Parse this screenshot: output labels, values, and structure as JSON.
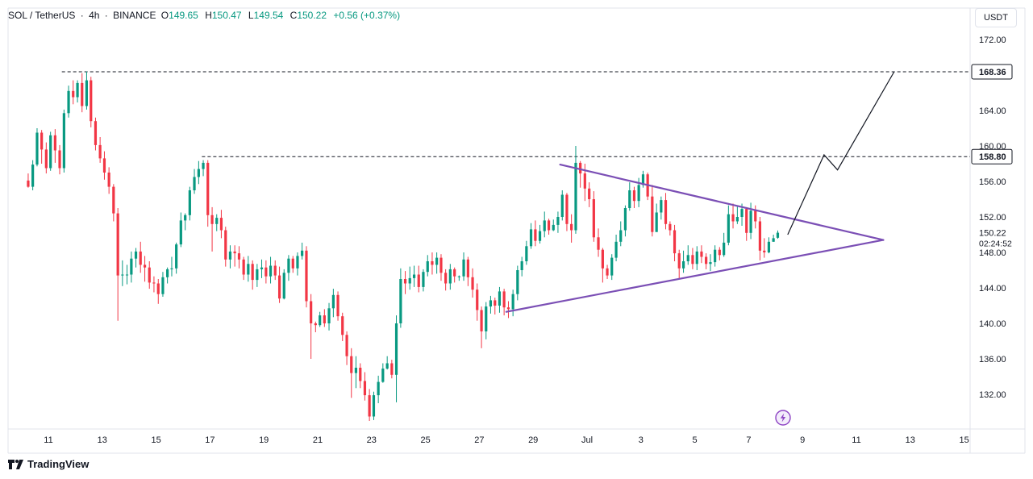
{
  "header": {
    "symbol": "SOL / TetherUS",
    "interval": "4h",
    "exchange": "BINANCE",
    "open_label": "O",
    "open": "149.65",
    "high_label": "H",
    "high": "150.47",
    "low_label": "L",
    "low": "149.54",
    "close_label": "C",
    "close": "150.22",
    "change": "+0.56 (+0.37%)"
  },
  "currency": "USDT",
  "brand": "TradingView",
  "colors": {
    "up": "#089981",
    "down": "#f23645",
    "triangle": "#7b4fb5",
    "projection": "#131722",
    "level_box": "#ffffff",
    "price_box": "#ffffff"
  },
  "icons": [
    "tradingview-logo-icon",
    "lightning-icon"
  ],
  "chart_data": {
    "type": "candlestick",
    "ylim": [
      128,
      175
    ],
    "y_ticks": [
      "172.00",
      "164.00",
      "160.00",
      "156.00",
      "152.00",
      "148.00",
      "144.00",
      "140.00",
      "136.00",
      "132.00"
    ],
    "x_ticks": [
      "11",
      "13",
      "15",
      "17",
      "19",
      "21",
      "23",
      "25",
      "27",
      "29",
      "Jul",
      "3",
      "5",
      "7",
      "9",
      "11",
      "13",
      "15"
    ],
    "x_domain": [
      "Jun 10",
      "Jul 16"
    ],
    "levels": [
      {
        "label": "168.36",
        "value": 168.36,
        "from": 11.5
      },
      {
        "label": "158.80",
        "value": 158.8,
        "from": 16.7
      }
    ],
    "last_price": {
      "label": "150.22",
      "value": 150.22,
      "countdown": "02:24:52"
    },
    "triangle": {
      "upper": [
        [
          30.0,
          157.9
        ],
        [
          42.0,
          149.4
        ]
      ],
      "lower": [
        [
          28.0,
          141.3
        ],
        [
          42.0,
          149.4
        ]
      ]
    },
    "projection": [
      [
        38.45,
        150.0
      ],
      [
        39.8,
        159.0
      ],
      [
        40.3,
        157.3
      ],
      [
        42.4,
        168.36
      ]
    ],
    "candles": [
      [
        10.25,
        156.1,
        155.4,
        156.9,
        155.3
      ],
      [
        10.42,
        155.4,
        157.9,
        158.4,
        155.0
      ],
      [
        10.58,
        157.9,
        161.5,
        162.0,
        157.7
      ],
      [
        10.75,
        161.5,
        159.6,
        161.8,
        158.0
      ],
      [
        10.92,
        159.6,
        157.5,
        160.4,
        156.9
      ],
      [
        11.08,
        157.5,
        161.2,
        161.6,
        157.2
      ],
      [
        11.25,
        161.2,
        159.5,
        161.9,
        158.1
      ],
      [
        11.42,
        159.5,
        157.5,
        160.1,
        156.8
      ],
      [
        11.58,
        157.5,
        163.7,
        164.1,
        157.0
      ],
      [
        11.75,
        163.7,
        166.2,
        166.8,
        163.2
      ],
      [
        11.92,
        166.2,
        165.5,
        167.4,
        164.7
      ],
      [
        12.08,
        165.5,
        167.1,
        167.4,
        164.9
      ],
      [
        12.25,
        167.1,
        164.5,
        168.2,
        163.8
      ],
      [
        12.42,
        164.5,
        167.4,
        168.4,
        164.1
      ],
      [
        12.58,
        167.4,
        162.8,
        167.8,
        162.1
      ],
      [
        12.75,
        162.8,
        160.1,
        163.2,
        159.5
      ],
      [
        12.92,
        160.1,
        158.6,
        161.0,
        158.1
      ],
      [
        13.08,
        158.6,
        157.0,
        159.4,
        156.2
      ],
      [
        13.25,
        157.0,
        155.4,
        157.6,
        154.6
      ],
      [
        13.42,
        155.4,
        152.4,
        155.7,
        151.5
      ],
      [
        13.58,
        152.4,
        145.4,
        153.0,
        140.3
      ],
      [
        13.75,
        145.4,
        145.5,
        147.1,
        144.2
      ],
      [
        13.92,
        145.5,
        145.5,
        146.6,
        144.4
      ],
      [
        14.08,
        145.5,
        147.3,
        148.1,
        144.6
      ],
      [
        14.25,
        147.3,
        148.1,
        148.5,
        146.3
      ],
      [
        14.42,
        148.1,
        146.6,
        149.2,
        145.7
      ],
      [
        14.58,
        146.6,
        146.3,
        147.6,
        144.7
      ],
      [
        14.75,
        146.3,
        144.6,
        147.0,
        143.9
      ],
      [
        14.92,
        144.6,
        144.5,
        145.3,
        143.5
      ],
      [
        15.08,
        144.5,
        143.3,
        145.0,
        142.2
      ],
      [
        15.25,
        143.3,
        145.2,
        145.8,
        143.0
      ],
      [
        15.42,
        145.2,
        146.1,
        146.3,
        144.5
      ],
      [
        15.58,
        146.1,
        146.2,
        147.5,
        145.3
      ],
      [
        15.75,
        146.2,
        148.9,
        149.1,
        145.6
      ],
      [
        15.92,
        148.9,
        151.6,
        152.5,
        148.6
      ],
      [
        16.08,
        151.6,
        152.2,
        152.4,
        150.5
      ],
      [
        16.25,
        152.2,
        155.0,
        155.4,
        151.6
      ],
      [
        16.42,
        155.0,
        156.5,
        157.4,
        154.6
      ],
      [
        16.58,
        156.5,
        157.4,
        158.3,
        155.7
      ],
      [
        16.75,
        157.4,
        158.1,
        158.4,
        156.6
      ],
      [
        16.92,
        158.1,
        152.2,
        158.4,
        150.9
      ],
      [
        17.08,
        152.2,
        151.2,
        153.1,
        148.1
      ],
      [
        17.25,
        151.2,
        151.9,
        152.3,
        150.4
      ],
      [
        17.42,
        151.9,
        150.5,
        152.8,
        149.6
      ],
      [
        17.58,
        150.5,
        147.2,
        150.9,
        146.4
      ],
      [
        17.75,
        147.2,
        148.1,
        148.8,
        146.2
      ],
      [
        17.92,
        148.1,
        147.9,
        148.8,
        146.4
      ],
      [
        18.08,
        147.9,
        147.2,
        148.7,
        146.2
      ],
      [
        18.25,
        147.2,
        145.5,
        147.5,
        144.9
      ],
      [
        18.42,
        145.5,
        146.7,
        147.6,
        144.7
      ],
      [
        18.58,
        146.7,
        144.9,
        147.1,
        143.8
      ],
      [
        18.75,
        144.9,
        146.1,
        146.7,
        144.1
      ],
      [
        18.92,
        146.1,
        146.3,
        147.2,
        145.1
      ],
      [
        19.08,
        146.3,
        145.3,
        147.1,
        144.5
      ],
      [
        19.25,
        145.3,
        146.5,
        147.5,
        144.5
      ],
      [
        19.42,
        146.5,
        145.4,
        147.1,
        144.9
      ],
      [
        19.58,
        145.4,
        142.8,
        146.4,
        142.3
      ],
      [
        19.75,
        142.8,
        145.7,
        146.1,
        142.7
      ],
      [
        19.92,
        145.7,
        147.3,
        147.7,
        144.8
      ],
      [
        20.08,
        147.3,
        146.2,
        147.6,
        145.7
      ],
      [
        20.25,
        146.2,
        147.6,
        148.0,
        145.4
      ],
      [
        20.42,
        147.6,
        148.2,
        149.1,
        147.2
      ],
      [
        20.58,
        148.2,
        142.5,
        148.7,
        141.8
      ],
      [
        20.75,
        142.5,
        140.0,
        143.3,
        136.0
      ],
      [
        20.92,
        140.0,
        139.8,
        140.2,
        139.0
      ],
      [
        21.08,
        139.8,
        140.9,
        141.3,
        139.6
      ],
      [
        21.25,
        140.9,
        140.0,
        141.6,
        139.6
      ],
      [
        21.42,
        140.0,
        141.7,
        142.3,
        139.2
      ],
      [
        21.58,
        141.7,
        143.2,
        143.9,
        140.7
      ],
      [
        21.75,
        143.2,
        140.8,
        143.6,
        140.3
      ],
      [
        21.92,
        140.8,
        138.7,
        141.2,
        138.0
      ],
      [
        22.08,
        138.7,
        136.3,
        139.1,
        135.3
      ],
      [
        22.25,
        136.3,
        134.4,
        137.2,
        131.6
      ],
      [
        22.42,
        134.4,
        135.0,
        136.3,
        132.7
      ],
      [
        22.58,
        135.0,
        133.5,
        135.5,
        132.7
      ],
      [
        22.75,
        133.5,
        131.9,
        134.5,
        131.3
      ],
      [
        22.92,
        131.9,
        129.5,
        132.6,
        129.0
      ],
      [
        23.08,
        129.5,
        131.9,
        132.3,
        129.1
      ],
      [
        23.25,
        131.9,
        133.4,
        134.1,
        131.0
      ],
      [
        23.42,
        133.4,
        134.9,
        135.5,
        133.3
      ],
      [
        23.58,
        134.9,
        135.5,
        136.3,
        134.8
      ],
      [
        23.75,
        135.5,
        134.2,
        135.9,
        133.8
      ],
      [
        23.92,
        134.2,
        140.0,
        140.9,
        131.1
      ],
      [
        24.08,
        140.0,
        145.0,
        146.2,
        139.5
      ],
      [
        24.25,
        145.0,
        144.5,
        145.9,
        143.3
      ],
      [
        24.42,
        144.5,
        145.1,
        146.4,
        143.8
      ],
      [
        24.58,
        145.1,
        145.5,
        146.5,
        144.1
      ],
      [
        24.75,
        145.5,
        144.1,
        146.5,
        143.5
      ],
      [
        24.92,
        144.1,
        145.8,
        146.1,
        143.6
      ],
      [
        25.08,
        145.8,
        147.0,
        147.7,
        145.3
      ],
      [
        25.25,
        147.0,
        146.6,
        148.0,
        145.5
      ],
      [
        25.42,
        146.6,
        147.4,
        148.0,
        145.6
      ],
      [
        25.58,
        147.4,
        145.7,
        147.8,
        144.8
      ],
      [
        25.75,
        145.7,
        144.5,
        146.1,
        143.7
      ],
      [
        25.92,
        144.5,
        146.1,
        146.7,
        143.8
      ],
      [
        26.08,
        146.1,
        145.3,
        146.3,
        144.6
      ],
      [
        26.25,
        145.3,
        145.3,
        145.4,
        144.8
      ],
      [
        26.42,
        145.3,
        147.2,
        148.0,
        144.8
      ],
      [
        26.58,
        147.2,
        145.2,
        147.5,
        144.2
      ],
      [
        26.75,
        145.2,
        143.8,
        146.2,
        142.9
      ],
      [
        26.92,
        143.8,
        141.5,
        144.5,
        140.3
      ],
      [
        27.08,
        141.5,
        139.1,
        141.9,
        137.2
      ],
      [
        27.25,
        139.1,
        141.9,
        142.4,
        138.2
      ],
      [
        27.42,
        141.9,
        142.6,
        143.1,
        141.1
      ],
      [
        27.58,
        142.6,
        142.0,
        142.9,
        141.0
      ],
      [
        27.75,
        142.0,
        143.6,
        144.1,
        141.2
      ],
      [
        27.92,
        143.6,
        141.8,
        143.9,
        140.9
      ],
      [
        28.08,
        141.8,
        141.6,
        142.5,
        140.6
      ],
      [
        28.25,
        141.6,
        143.3,
        143.8,
        140.8
      ],
      [
        28.42,
        143.3,
        146.0,
        146.5,
        142.6
      ],
      [
        28.58,
        146.0,
        147.0,
        147.5,
        145.3
      ],
      [
        28.75,
        147.0,
        148.7,
        149.3,
        146.6
      ],
      [
        28.92,
        148.7,
        150.6,
        151.3,
        148.4
      ],
      [
        29.08,
        150.6,
        149.3,
        151.6,
        148.7
      ],
      [
        29.25,
        149.3,
        150.4,
        151.1,
        149.0
      ],
      [
        29.42,
        150.4,
        151.6,
        152.6,
        149.7
      ],
      [
        29.58,
        151.6,
        150.5,
        151.8,
        150.0
      ],
      [
        29.75,
        150.5,
        151.1,
        151.7,
        150.4
      ],
      [
        29.92,
        151.1,
        152.0,
        152.6,
        150.2
      ],
      [
        30.08,
        152.0,
        154.5,
        155.0,
        151.6
      ],
      [
        30.25,
        154.5,
        151.2,
        154.7,
        150.4
      ],
      [
        30.42,
        151.2,
        150.5,
        152.3,
        149.1
      ],
      [
        30.58,
        150.5,
        158.1,
        160.0,
        150.1
      ],
      [
        30.75,
        158.1,
        156.9,
        158.3,
        155.3
      ],
      [
        30.92,
        156.9,
        155.2,
        158.0,
        153.8
      ],
      [
        31.08,
        155.2,
        154.0,
        155.9,
        153.1
      ],
      [
        31.25,
        154.0,
        149.7,
        154.9,
        149.2
      ],
      [
        31.42,
        149.7,
        148.3,
        150.7,
        147.5
      ],
      [
        31.58,
        148.3,
        146.2,
        148.5,
        144.6
      ],
      [
        31.75,
        146.2,
        145.4,
        146.6,
        145.0
      ],
      [
        31.92,
        145.4,
        147.4,
        147.8,
        144.9
      ],
      [
        32.08,
        147.4,
        149.2,
        150.0,
        147.0
      ],
      [
        32.25,
        149.2,
        150.5,
        151.5,
        148.7
      ],
      [
        32.42,
        150.5,
        153.0,
        153.3,
        149.8
      ],
      [
        32.58,
        153.0,
        155.0,
        155.9,
        152.7
      ],
      [
        32.75,
        155.0,
        153.8,
        155.4,
        153.0
      ],
      [
        32.92,
        153.8,
        155.6,
        156.4,
        153.1
      ],
      [
        33.08,
        155.6,
        156.8,
        157.2,
        155.3
      ],
      [
        33.25,
        156.8,
        154.3,
        157.0,
        153.9
      ],
      [
        33.42,
        154.3,
        150.3,
        155.6,
        149.8
      ],
      [
        33.58,
        150.3,
        152.5,
        153.5,
        150.3
      ],
      [
        33.75,
        152.5,
        153.9,
        154.3,
        151.7
      ],
      [
        33.92,
        153.9,
        151.2,
        154.7,
        150.6
      ],
      [
        34.08,
        151.2,
        150.5,
        151.5,
        149.9
      ],
      [
        34.25,
        150.5,
        147.9,
        151.1,
        147.0
      ],
      [
        34.42,
        147.9,
        146.2,
        148.3,
        145.0
      ],
      [
        34.58,
        146.2,
        147.0,
        148.2,
        145.7
      ],
      [
        34.75,
        147.0,
        147.7,
        148.8,
        146.6
      ],
      [
        34.92,
        147.7,
        146.7,
        148.5,
        146.1
      ],
      [
        35.08,
        146.7,
        148.1,
        148.7,
        146.0
      ],
      [
        35.25,
        148.1,
        147.5,
        148.8,
        146.8
      ],
      [
        35.42,
        147.5,
        146.7,
        147.9,
        146.1
      ],
      [
        35.58,
        146.7,
        146.9,
        147.8,
        145.9
      ],
      [
        35.75,
        146.9,
        148.3,
        148.8,
        146.4
      ],
      [
        35.92,
        148.3,
        147.7,
        148.6,
        147.1
      ],
      [
        36.08,
        147.7,
        149.1,
        150.2,
        147.5
      ],
      [
        36.25,
        149.1,
        152.3,
        153.3,
        148.8
      ],
      [
        36.42,
        152.3,
        151.5,
        153.5,
        150.7
      ],
      [
        36.58,
        151.5,
        152.0,
        153.3,
        151.2
      ],
      [
        36.75,
        152.0,
        152.9,
        153.5,
        151.0
      ],
      [
        36.92,
        152.9,
        150.2,
        153.1,
        149.3
      ],
      [
        37.08,
        150.2,
        152.7,
        153.6,
        149.5
      ],
      [
        37.25,
        152.7,
        151.5,
        153.3,
        150.7
      ],
      [
        37.42,
        151.5,
        148.2,
        152.0,
        147.1
      ],
      [
        37.58,
        148.2,
        148.0,
        149.6,
        147.4
      ],
      [
        37.75,
        148.0,
        149.2,
        149.7,
        147.9
      ],
      [
        37.92,
        149.2,
        149.6,
        150.0,
        149.2
      ],
      [
        38.08,
        149.65,
        150.22,
        150.47,
        149.54
      ]
    ]
  }
}
